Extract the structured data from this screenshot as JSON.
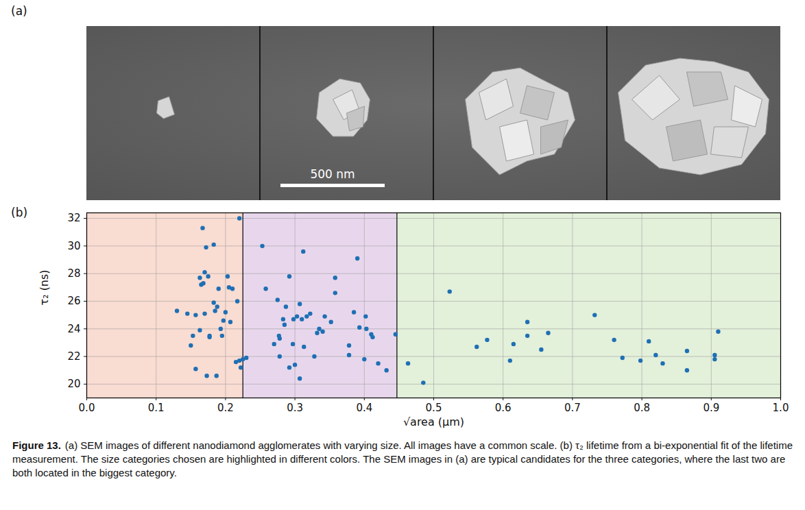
{
  "panel_a": {
    "label": "(a)",
    "scale_bar": "500 nm"
  },
  "chart_data": {
    "panel_label": "(b)",
    "type": "scatter",
    "xlabel": "√area (μm)",
    "ylabel": "τ₂ (ns)",
    "color": "#1f6fb4",
    "marker": "circle",
    "grid": true,
    "xlim": [
      0,
      1
    ],
    "xticks": [
      {
        "value": 0,
        "label": "0.0"
      },
      {
        "value": 0.1,
        "label": "0.1"
      },
      {
        "value": 0.2,
        "label": "0.2"
      },
      {
        "value": 0.3,
        "label": "0.3"
      },
      {
        "value": 0.4,
        "label": "0.4"
      },
      {
        "value": 0.5,
        "label": "0.5"
      },
      {
        "value": 0.6,
        "label": "0.6"
      },
      {
        "value": 0.7,
        "label": "0.7"
      },
      {
        "value": 0.8,
        "label": "0.8"
      },
      {
        "value": 0.9,
        "label": "0.9"
      },
      {
        "value": 1,
        "label": "1.0"
      }
    ],
    "ylim": [
      19,
      32.4
    ],
    "yticks": [
      20,
      22,
      24,
      26,
      28,
      30,
      32
    ],
    "regions": [
      {
        "from": 0,
        "to": 0.225,
        "color": "#f9dcd2"
      },
      {
        "from": 0.225,
        "to": 0.447,
        "color": "#e8d7ec"
      },
      {
        "from": 0.447,
        "to": 1,
        "color": "#e3f0da"
      }
    ],
    "x": [
      0.13,
      0.145,
      0.15,
      0.153,
      0.157,
      0.157,
      0.163,
      0.163,
      0.165,
      0.167,
      0.168,
      0.17,
      0.17,
      0.172,
      0.173,
      0.175,
      0.177,
      0.177,
      0.183,
      0.183,
      0.185,
      0.187,
      0.188,
      0.19,
      0.193,
      0.195,
      0.197,
      0.2,
      0.203,
      0.205,
      0.207,
      0.21,
      0.215,
      0.217,
      0.22,
      0.22,
      0.222,
      0.225,
      0.23,
      0.253,
      0.258,
      0.27,
      0.275,
      0.277,
      0.278,
      0.278,
      0.283,
      0.285,
      0.287,
      0.292,
      0.292,
      0.297,
      0.298,
      0.3,
      0.303,
      0.307,
      0.307,
      0.31,
      0.312,
      0.313,
      0.317,
      0.322,
      0.328,
      0.332,
      0.335,
      0.34,
      0.343,
      0.352,
      0.358,
      0.358,
      0.378,
      0.378,
      0.385,
      0.39,
      0.393,
      0.4,
      0.402,
      0.403,
      0.41,
      0.412,
      0.42,
      0.432,
      0.445,
      0.463,
      0.485,
      0.523,
      0.562,
      0.577,
      0.61,
      0.615,
      0.635,
      0.635,
      0.655,
      0.665,
      0.732,
      0.76,
      0.772,
      0.798,
      0.81,
      0.82,
      0.83,
      0.865,
      0.865,
      0.905,
      0.905,
      0.91
    ],
    "values": [
      25.3,
      25.1,
      22.8,
      23.5,
      25.0,
      21.1,
      27.7,
      23.9,
      27.2,
      31.3,
      27.3,
      28.1,
      25.1,
      29.9,
      20.6,
      27.8,
      23.5,
      23.4,
      30.1,
      25.9,
      25.3,
      20.6,
      25.6,
      26.9,
      24.0,
      23.5,
      24.6,
      25.2,
      27.8,
      27.0,
      24.5,
      26.9,
      21.6,
      26.0,
      32.0,
      21.7,
      21.2,
      21.8,
      21.9,
      30.0,
      26.9,
      22.9,
      26.1,
      23.5,
      23.3,
      22.0,
      24.7,
      24.3,
      25.6,
      27.8,
      21.2,
      22.9,
      24.7,
      21.4,
      24.9,
      25.8,
      20.4,
      24.7,
      29.6,
      22.7,
      24.9,
      25.1,
      22.0,
      23.7,
      24.0,
      23.8,
      24.9,
      24.5,
      27.7,
      26.6,
      22.8,
      22.1,
      25.2,
      29.1,
      24.1,
      21.8,
      24.9,
      24.0,
      23.6,
      23.4,
      21.5,
      21.0,
      23.6,
      21.5,
      20.1,
      26.7,
      22.7,
      23.2,
      21.7,
      22.9,
      24.5,
      23.5,
      22.5,
      23.7,
      25.0,
      23.2,
      21.9,
      21.7,
      23.1,
      22.1,
      21.5,
      22.4,
      21.0,
      22.1,
      21.8,
      23.8
    ]
  },
  "caption": {
    "label": "Figure 13.",
    "text": "(a) SEM images of different nanodiamond agglomerates with varying size. All images have a common scale. (b) τ₂ lifetime from a bi-exponential fit of the lifetime measurement. The size categories chosen are highlighted in different colors. The SEM images in (a) are typical candidates for the three categories, where the last two are both located in the biggest category."
  }
}
